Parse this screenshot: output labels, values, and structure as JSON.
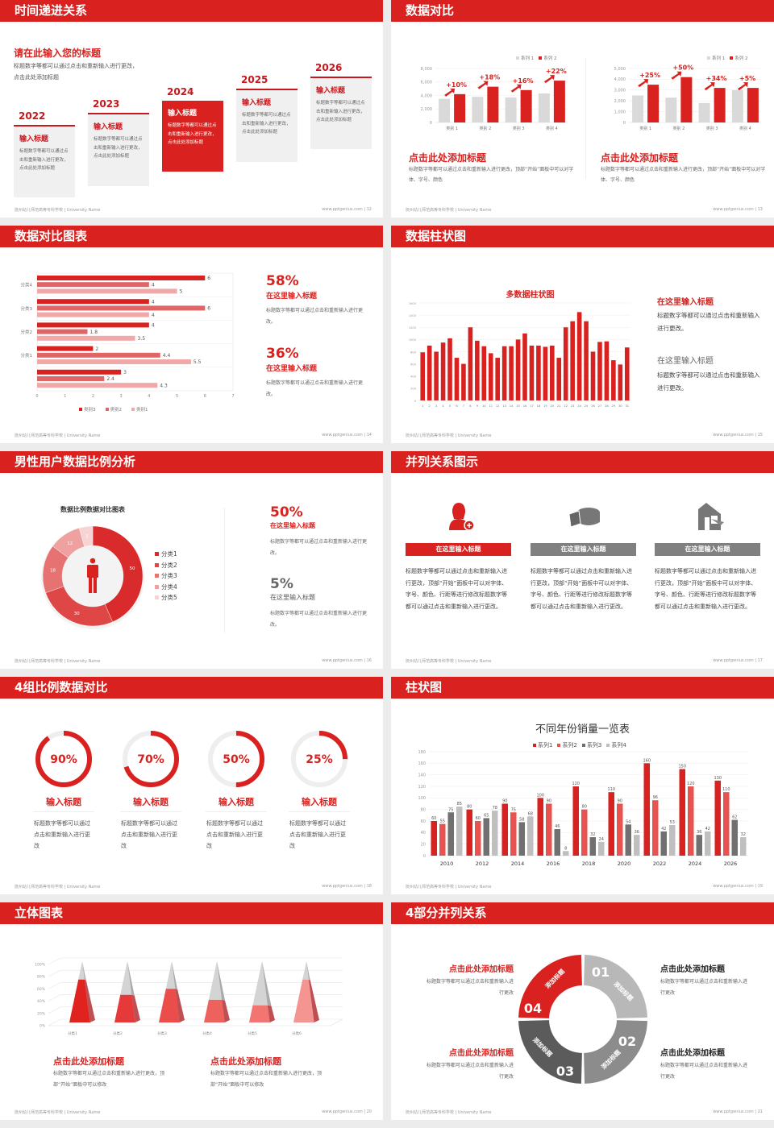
{
  "brand_color": "#d9221f",
  "footer": {
    "left": "抚州幼儿师范高等专科学校 | University Name",
    "right": "www.pptgenius.com"
  },
  "slides": [
    {
      "title": "时间递进关系",
      "page": "12",
      "heading": "请在此输入您的标题",
      "desc": "标题数字等都可以通过点击和重新输入进行更改，点击此处添加标题",
      "items": [
        {
          "year": "2022",
          "title": "输入标题",
          "text": "标题数字等都可以通过点击和重新输入进行更改，点击此处添加标题"
        },
        {
          "year": "2023",
          "title": "输入标题",
          "text": "标题数字等都可以通过点击和重新输入进行更改，点击此处添加标题"
        },
        {
          "year": "2024",
          "title": "输入标题",
          "text": "标题数字等都可以通过点击和重新输入进行更改，点击此处添加标题"
        },
        {
          "year": "2025",
          "title": "输入标题",
          "text": "标题数字等都可以通过点击和重新输入进行更改，点击此处添加标题"
        },
        {
          "year": "2026",
          "title": "输入标题",
          "text": "标题数字等都可以通过点击和重新输入进行更改，点击此处添加标题"
        }
      ]
    },
    {
      "title": "数据对比",
      "page": "13",
      "blocks": [
        {
          "title": "点击此处添加标题",
          "text": "标题数字等都可以通过点击和重新输入进行更改，顶部“开始”面板中可以对字体、字号、颜色"
        },
        {
          "title": "点击此处添加标题",
          "text": "标题数字等都可以通过点击和重新输入进行更改，顶部“开始”面板中可以对字体、字号、颜色"
        }
      ]
    },
    {
      "title": "数据对比图表",
      "page": "14",
      "stats": [
        {
          "value": "58%",
          "title": "在这里输入标题",
          "text": "标题数字等都可以通过点击和重新输入进行更改。"
        },
        {
          "value": "36%",
          "title": "在这里输入标题",
          "text": "标题数字等都可以通过点击和重新输入进行更改。"
        }
      ]
    },
    {
      "title": "数据柱状图",
      "page": "15",
      "blocks": [
        {
          "title": "在这里输入标题",
          "text": "标题数字等都可以通过点击和重新输入进行更改。"
        },
        {
          "title": "在这里输入标题",
          "text": "标题数字等都可以通过点击和重新输入进行更改。"
        }
      ]
    },
    {
      "title": "男性用户数据比例分析",
      "page": "16",
      "stats": [
        {
          "value": "50%",
          "title": "在这里输入标题",
          "text": "标题数字等都可以通过点击和重新输入进行更改。"
        },
        {
          "value": "5%",
          "title": "在这里输入标题",
          "text": "标题数字等都可以通过点击和重新输入进行更改。"
        }
      ]
    },
    {
      "title": "并列关系图示",
      "page": "17",
      "columns": [
        {
          "icon": "person-add-icon",
          "label": "在这里输入标题",
          "text": "标题数字等都可以通过点击和重新输入进行更改，顶部“开始”面板中可以对字体、字号、颜色、行距等进行修改标题数字等都可以通过点击和重新输入进行更改。",
          "active": true
        },
        {
          "icon": "pie-3d-icon",
          "label": "在这里输入标题",
          "text": "标题数字等都可以通过点击和重新输入进行更改，顶部“开始”面板中可以对字体、字号、颜色、行距等进行修改标题数字等都可以通过点击和重新输入进行更改。",
          "active": false
        },
        {
          "icon": "building-icon",
          "label": "在这里输入标题",
          "text": "标题数字等都可以通过点击和重新输入进行更改，顶部“开始”面板中可以对字体、字号、颜色、行距等进行修改标题数字等都可以通过点击和重新输入进行更改。",
          "active": false
        }
      ]
    },
    {
      "title": "4组比例数据对比",
      "page": "18",
      "rings": [
        {
          "percent": 90,
          "label": "90%",
          "title": "输入标题",
          "text": "标题数字等都可以通过点击和重新输入进行更改"
        },
        {
          "percent": 70,
          "label": "70%",
          "title": "输入标题",
          "text": "标题数字等都可以通过点击和重新输入进行更改"
        },
        {
          "percent": 50,
          "label": "50%",
          "title": "输入标题",
          "text": "标题数字等都可以通过点击和重新输入进行更改"
        },
        {
          "percent": 25,
          "label": "25%",
          "title": "输入标题",
          "text": "标题数字等都可以通过点击和重新输入进行更改"
        }
      ]
    },
    {
      "title": "柱状图",
      "page": "19"
    },
    {
      "title": "立体图表",
      "page": "20",
      "blocks": [
        {
          "title": "点击此处添加标题",
          "text": "标题数字等都可以通过点击和重新输入进行更改，顶部“开始”面板中可以修改"
        },
        {
          "title": "点击此处添加标题",
          "text": "标题数字等都可以通过点击和重新输入进行更改，顶部“开始”面板中可以修改"
        }
      ]
    },
    {
      "title": "4部分并列关系",
      "page": "21",
      "segments": [
        {
          "num": "01",
          "label": "添加标题",
          "color": "#b8b8b8"
        },
        {
          "num": "02",
          "label": "添加标题",
          "color": "#8c8c8c"
        },
        {
          "num": "03",
          "label": "添加标题",
          "color": "#5b5b5b"
        },
        {
          "num": "04",
          "label": "添加标题",
          "color": "#d9221f"
        }
      ],
      "blocks": [
        {
          "title": "点击此处添加标题",
          "text": "标题数字等都可以通过点击和重新输入进行更改"
        },
        {
          "title": "点击此处添加标题",
          "text": "标题数字等都可以通过点击和重新输入进行更改"
        },
        {
          "title": "点击此处添加标题",
          "text": "标题数字等都可以通过点击和重新输入进行更改"
        },
        {
          "title": "点击此处添加标题",
          "text": "标题数字等都可以通过点击和重新输入进行更改"
        }
      ]
    }
  ],
  "chart_data": [
    {
      "type": "bar",
      "categories": [
        "类别 1",
        "类别 2",
        "类别 3",
        "类别 4"
      ],
      "series": [
        {
          "name": "系列 1",
          "values": [
            3500,
            3800,
            3700,
            4300
          ],
          "color": "#d9d9d9"
        },
        {
          "name": "系列 2",
          "values": [
            4200,
            5300,
            4800,
            6200
          ],
          "color": "#d9221f"
        }
      ],
      "yticks": [
        "0",
        "2,000",
        "4,000",
        "6,000",
        "8,000"
      ],
      "ylim": [
        0,
        8000
      ],
      "annotations": [
        "+10%",
        "+18%",
        "+16%",
        "+22%"
      ],
      "grid": true,
      "legend": "top-right"
    },
    {
      "type": "bar",
      "categories": [
        "类别 1",
        "类别 2",
        "类别 3",
        "类别 4"
      ],
      "series": [
        {
          "name": "系列 1",
          "values": [
            2500,
            2300,
            1800,
            3000
          ],
          "color": "#d9d9d9"
        },
        {
          "name": "系列 2",
          "values": [
            3500,
            4200,
            3200,
            3200
          ],
          "color": "#d9221f"
        }
      ],
      "yticks": [
        "0",
        "1,000",
        "2,000",
        "3,000",
        "4,000",
        "5,000"
      ],
      "ylim": [
        0,
        5000
      ],
      "annotations": [
        "+25%",
        "+50%",
        "+34%",
        "+5%"
      ],
      "grid": true,
      "legend": "top-right"
    },
    {
      "type": "bar",
      "orientation": "horizontal",
      "categories": [
        "分类4",
        "分类3",
        "分类2",
        "分类1",
        ""
      ],
      "series": [
        {
          "name": "类别3",
          "values": [
            6,
            4,
            4,
            2,
            3
          ],
          "color": "#d9221f"
        },
        {
          "name": "类别2",
          "values": [
            4,
            6,
            1.8,
            4.4,
            2.4
          ],
          "color": "#e06666"
        },
        {
          "name": "类别1",
          "values": [
            5,
            4,
            3.5,
            5.5,
            4.3
          ],
          "color": "#f0a8a8"
        }
      ],
      "xlim": [
        0,
        7
      ],
      "xticks": [
        "0",
        "1",
        "2",
        "3",
        "4",
        "5",
        "6",
        "7"
      ],
      "grid": true,
      "legend": "bottom"
    },
    {
      "type": "bar",
      "title": "多数据柱状图",
      "categories": [
        "1",
        "2",
        "3",
        "4",
        "5",
        "6",
        "7",
        "8",
        "9",
        "10",
        "11",
        "12",
        "13",
        "14",
        "15",
        "16",
        "17",
        "18",
        "19",
        "20",
        "21",
        "22",
        "23",
        "24",
        "25",
        "26",
        "27",
        "28",
        "29",
        "30",
        "31"
      ],
      "values": [
        790,
        900,
        800,
        950,
        1020,
        700,
        600,
        1200,
        980,
        890,
        775,
        700,
        890,
        890,
        1000,
        1100,
        900,
        900,
        880,
        900,
        700,
        1200,
        1300,
        1450,
        1300,
        800,
        960,
        970,
        660,
        590,
        870
      ],
      "ylim": [
        0,
        1600
      ],
      "yticks": [
        "0",
        "200",
        "400",
        "600",
        "800",
        "1000",
        "1200",
        "1400",
        "1600"
      ],
      "color": "#d9221f",
      "grid": true
    },
    {
      "type": "pie",
      "title": "数据比例数据对比图表",
      "donut": true,
      "categories": [
        "分类1",
        "分类2",
        "分类3",
        "分类4",
        "分类5"
      ],
      "values": [
        50,
        30,
        18,
        12,
        5
      ],
      "colors": [
        "#d92b2b",
        "#df4747",
        "#e77272",
        "#efa1a1",
        "#f7d3d3"
      ],
      "legend": "right"
    },
    {
      "type": "bar",
      "title": "不同年份销量一览表",
      "categories": [
        "2010",
        "2012",
        "2014",
        "2016",
        "2018",
        "2020",
        "2022",
        "2024",
        "2026"
      ],
      "series": [
        {
          "name": "系列1",
          "values": [
            60,
            80,
            90,
            100,
            120,
            110,
            160,
            150,
            130
          ],
          "color": "#d9221f"
        },
        {
          "name": "系列2",
          "values": [
            55,
            60,
            75,
            90,
            80,
            90,
            96,
            120,
            110
          ],
          "color": "#e8534f"
        },
        {
          "name": "系列3",
          "values": [
            75,
            65,
            58,
            46,
            32,
            54,
            42,
            36,
            62
          ],
          "color": "#707070"
        },
        {
          "name": "系列4",
          "values": [
            85,
            78,
            68,
            8,
            24,
            36,
            53,
            42,
            32
          ],
          "color": "#bfbfbf"
        }
      ],
      "ylim": [
        0,
        180
      ],
      "yticks": [
        "0",
        "20",
        "40",
        "60",
        "80",
        "100",
        "120",
        "140",
        "160",
        "180"
      ],
      "grid": true,
      "legend": "top",
      "data_labels": true
    },
    {
      "type": "bar",
      "style": "3d-pyramid",
      "categories": [
        "分类1",
        "分类2",
        "分类3",
        "分类4",
        "分类5",
        "分类6"
      ],
      "values": [
        70,
        45,
        55,
        37,
        28,
        70
      ],
      "ylim": [
        0,
        100
      ],
      "yticks": [
        "0%",
        "20%",
        "40%",
        "60%",
        "80%",
        "100%"
      ],
      "colors": [
        "#e0231f",
        "#e5393a",
        "#ea4d4a",
        "#ee615d",
        "#f27571",
        "#f59591"
      ],
      "grid": true
    }
  ]
}
